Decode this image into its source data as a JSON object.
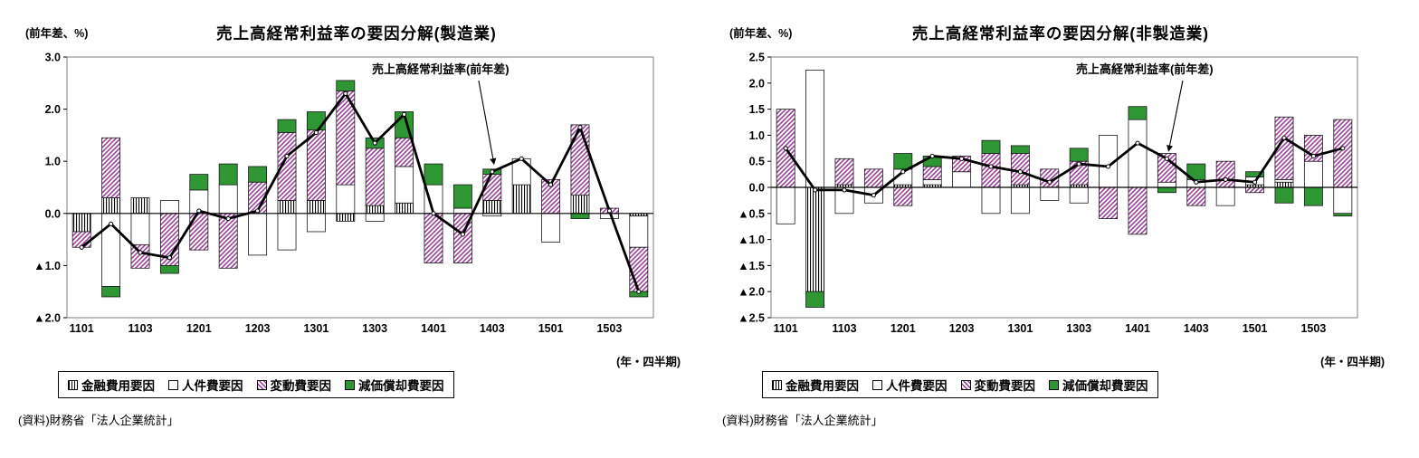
{
  "page": {
    "background": "#ffffff"
  },
  "colors": {
    "variable_hatch": "#993399",
    "depreciation_green": "#2e9632",
    "line": "#000000",
    "marker_fill": "#ffffff",
    "plot_border": "#808080"
  },
  "legend": {
    "items": [
      {
        "id": "financial",
        "label": "金融費用要因",
        "swatch": "vstripe"
      },
      {
        "id": "personnel",
        "label": "人件費要因",
        "swatch": "white"
      },
      {
        "id": "variable",
        "label": "変動費要因",
        "swatch": "hatch"
      },
      {
        "id": "depreciation",
        "label": "減価償却費要因",
        "swatch": "green"
      }
    ]
  },
  "source_note": "(資料)財務省「法人企業統計」",
  "chart_data": [
    {
      "type": "stacked_bar_with_line",
      "title": "売上高経常利益率の要因分解(製造業)",
      "unit_label": "(前年差、%)",
      "xaxis_note": "(年・四半期)",
      "annotation": {
        "text": "売上高経常利益率(前年差)",
        "target_quarter": "1403"
      },
      "quarters": [
        "1101",
        "1102",
        "1103",
        "1104",
        "1201",
        "1202",
        "1203",
        "1204",
        "1301",
        "1302",
        "1303",
        "1304",
        "1401",
        "1402",
        "1403",
        "1404",
        "1501",
        "1502",
        "1503",
        "1504"
      ],
      "xtick_labels": [
        "1101",
        "1103",
        "1201",
        "1203",
        "1301",
        "1303",
        "1401",
        "1403",
        "1501",
        "1503"
      ],
      "ylim": [
        -2.0,
        3.0
      ],
      "yticks": [
        3.0,
        2.0,
        1.0,
        0.0,
        -1.0,
        -2.0
      ],
      "ytick_labels": [
        "3.0",
        "2.0",
        "1.0",
        "0.0",
        "▲1.0",
        "▲2.0"
      ],
      "grid": false,
      "legend_position": "bottom",
      "series": [
        {
          "name": "金融費用要因",
          "style": "vstripe",
          "values": [
            -0.35,
            0.3,
            0.3,
            0,
            0,
            0,
            0,
            0.25,
            0.25,
            -0.15,
            0.15,
            0.2,
            0,
            0,
            0.25,
            0.55,
            0,
            0.35,
            0,
            -0.05
          ]
        },
        {
          "name": "人件費要因",
          "style": "white",
          "values": [
            0,
            -1.4,
            -0.6,
            0.25,
            0.45,
            0.55,
            -0.8,
            -0.7,
            -0.35,
            0.55,
            -0.15,
            0.7,
            0.55,
            0.1,
            -0.05,
            0.5,
            -0.55,
            0,
            -0.1,
            -0.6
          ]
        },
        {
          "name": "変動費要因",
          "style": "hatch",
          "values": [
            -0.3,
            1.15,
            -0.45,
            -1.0,
            -0.7,
            -1.05,
            0.6,
            1.3,
            1.35,
            1.8,
            1.1,
            0.55,
            -0.95,
            -0.95,
            0.5,
            0,
            0.65,
            1.35,
            0.1,
            -0.85
          ]
        },
        {
          "name": "減価償却費要因",
          "style": "green",
          "values": [
            0,
            -0.2,
            0,
            -0.15,
            0.3,
            0.4,
            0.3,
            0.25,
            0.35,
            0.2,
            0.2,
            0.5,
            0.4,
            0.45,
            0.1,
            0,
            0,
            -0.1,
            0,
            -0.1
          ]
        }
      ],
      "line": {
        "name": "売上高経常利益率(前年差)",
        "values": [
          -0.65,
          -0.2,
          -0.75,
          -0.85,
          0.05,
          -0.1,
          0.05,
          1.1,
          1.55,
          2.3,
          1.35,
          1.9,
          0.0,
          -0.4,
          0.8,
          1.05,
          0.55,
          1.65,
          0.05,
          -1.5
        ]
      }
    },
    {
      "type": "stacked_bar_with_line",
      "title": "売上高経常利益率の要因分解(非製造業)",
      "unit_label": "(前年差、%)",
      "xaxis_note": "(年・四半期)",
      "annotation": {
        "text": "売上高経常利益率(前年差)",
        "target_quarter": "1402"
      },
      "quarters": [
        "1101",
        "1102",
        "1103",
        "1104",
        "1201",
        "1202",
        "1203",
        "1204",
        "1301",
        "1302",
        "1303",
        "1304",
        "1401",
        "1402",
        "1403",
        "1404",
        "1501",
        "1502",
        "1503",
        "1504"
      ],
      "xtick_labels": [
        "1101",
        "1103",
        "1201",
        "1203",
        "1301",
        "1303",
        "1401",
        "1403",
        "1501",
        "1503"
      ],
      "ylim": [
        -2.5,
        2.5
      ],
      "yticks": [
        2.5,
        2.0,
        1.5,
        1.0,
        0.5,
        0.0,
        -0.5,
        -1.0,
        -1.5,
        -2.0,
        -2.5
      ],
      "ytick_labels": [
        "2.5",
        "2.0",
        "1.5",
        "1.0",
        "0.5",
        "0.0",
        "▲0.5",
        "▲1.0",
        "▲1.5",
        "▲2.0",
        "▲2.5"
      ],
      "grid": false,
      "legend_position": "bottom",
      "series": [
        {
          "name": "金融費用要因",
          "style": "vstripe",
          "values": [
            0,
            -2.0,
            0.05,
            0,
            0.05,
            0.05,
            0,
            0,
            0.05,
            0,
            0.05,
            0,
            0,
            0,
            0,
            0,
            0.05,
            0.1,
            0,
            0
          ]
        },
        {
          "name": "人件費要因",
          "style": "white",
          "values": [
            -0.7,
            2.25,
            -0.5,
            -0.3,
            0.3,
            0.1,
            0.3,
            -0.5,
            -0.5,
            -0.25,
            -0.3,
            1.0,
            1.3,
            0.1,
            0.15,
            -0.35,
            0.15,
            0.05,
            0.5,
            -0.5
          ]
        },
        {
          "name": "変動費要因",
          "style": "hatch",
          "values": [
            1.5,
            0,
            0.5,
            0.35,
            -0.35,
            0.25,
            0.3,
            0.65,
            0.6,
            0.35,
            0.45,
            -0.6,
            -0.9,
            0.55,
            -0.35,
            0.5,
            -0.1,
            1.2,
            0.5,
            1.3
          ]
        },
        {
          "name": "減価償却費要因",
          "style": "green",
          "values": [
            0,
            -0.3,
            0,
            0,
            0.3,
            0.2,
            0,
            0.25,
            0.15,
            0,
            0.25,
            0,
            0.25,
            -0.1,
            0.3,
            0,
            0.1,
            -0.3,
            -0.35,
            -0.05
          ]
        }
      ],
      "line": {
        "name": "売上高経常利益率(前年差)",
        "values": [
          0.75,
          -0.05,
          -0.05,
          -0.15,
          0.3,
          0.6,
          0.55,
          0.4,
          0.3,
          0.1,
          0.45,
          0.4,
          0.85,
          0.55,
          0.1,
          0.15,
          0.1,
          0.95,
          0.6,
          0.75
        ]
      }
    }
  ]
}
